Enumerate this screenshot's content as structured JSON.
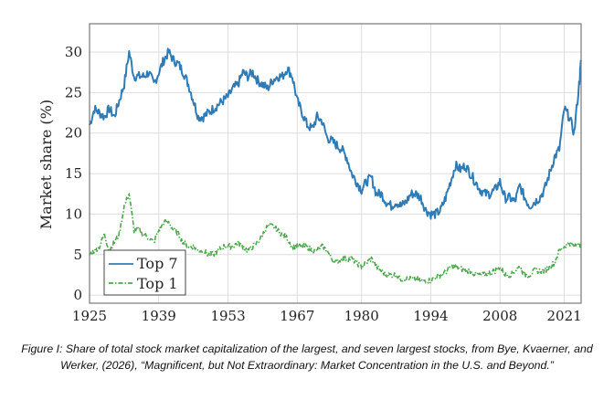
{
  "chart_data": {
    "type": "line",
    "xlabel": "",
    "ylabel": "Market share (%)",
    "xlim": [
      1925,
      2024.4
    ],
    "ylim": [
      -1,
      33.5
    ],
    "xticks": [
      1925,
      1939,
      1953,
      1967,
      1980,
      1994,
      2008,
      2021
    ],
    "yticks": [
      0,
      5,
      10,
      15,
      20,
      25,
      30
    ],
    "grid": true,
    "legend_position": "bottom-left",
    "series": [
      {
        "name": "Top 7",
        "color": "#2f7bb5",
        "style": "solid",
        "x": [
          1925,
          1926,
          1927,
          1928,
          1929,
          1930,
          1931,
          1932,
          1933,
          1934,
          1935,
          1936,
          1937,
          1938,
          1939,
          1940,
          1941,
          1942,
          1943,
          1944,
          1945,
          1946,
          1947,
          1948,
          1949,
          1950,
          1951,
          1952,
          1953,
          1954,
          1955,
          1956,
          1957,
          1958,
          1959,
          1960,
          1961,
          1962,
          1963,
          1964,
          1965,
          1966,
          1967,
          1968,
          1969,
          1970,
          1971,
          1972,
          1973,
          1974,
          1975,
          1976,
          1977,
          1978,
          1979,
          1980,
          1981,
          1982,
          1983,
          1984,
          1985,
          1986,
          1987,
          1988,
          1989,
          1990,
          1991,
          1992,
          1993,
          1994,
          1995,
          1996,
          1997,
          1998,
          1999,
          2000,
          2001,
          2002,
          2003,
          2004,
          2005,
          2006,
          2007,
          2008,
          2009,
          2010,
          2011,
          2012,
          2013,
          2014,
          2015,
          2016,
          2017,
          2018,
          2019,
          2020,
          2021,
          2022,
          2023,
          2024,
          2024.4
        ],
        "y": [
          21,
          23,
          22.5,
          22,
          23,
          22,
          24,
          26,
          30,
          27,
          27,
          27,
          27.5,
          26,
          27.5,
          29,
          30,
          29,
          28.5,
          27.5,
          26,
          24,
          22,
          22,
          22.5,
          23,
          23.5,
          24,
          24.5,
          25.5,
          26,
          27.5,
          27,
          27.5,
          26.5,
          26,
          25.5,
          26.5,
          27,
          27,
          28,
          27,
          24,
          22.5,
          21,
          20.5,
          22,
          21.5,
          19.5,
          19,
          18.5,
          18,
          17,
          15,
          14,
          13,
          14,
          14.5,
          12.5,
          12.5,
          11.5,
          11,
          11.5,
          11,
          11.5,
          12.5,
          12.5,
          12,
          10.5,
          10,
          10,
          10.5,
          12,
          14,
          16,
          15.5,
          16,
          15,
          14,
          13,
          12.5,
          12.5,
          13,
          14,
          12,
          12,
          11.5,
          13.5,
          12,
          11,
          11.5,
          12,
          13,
          15,
          17,
          18,
          23,
          22,
          20,
          26,
          29
        ]
      },
      {
        "name": "Top 1",
        "color": "#4aa84a",
        "style": "dash-dot",
        "x": [
          1925,
          1926,
          1927,
          1928,
          1929,
          1930,
          1931,
          1932,
          1933,
          1934,
          1935,
          1936,
          1937,
          1938,
          1939,
          1940,
          1941,
          1942,
          1943,
          1944,
          1945,
          1946,
          1947,
          1948,
          1949,
          1950,
          1951,
          1952,
          1953,
          1954,
          1955,
          1956,
          1957,
          1958,
          1959,
          1960,
          1961,
          1962,
          1963,
          1964,
          1965,
          1966,
          1967,
          1968,
          1969,
          1970,
          1971,
          1972,
          1973,
          1974,
          1975,
          1976,
          1977,
          1978,
          1979,
          1980,
          1981,
          1982,
          1983,
          1984,
          1985,
          1986,
          1987,
          1988,
          1989,
          1990,
          1991,
          1992,
          1993,
          1994,
          1995,
          1996,
          1997,
          1998,
          1999,
          2000,
          2001,
          2002,
          2003,
          2004,
          2005,
          2006,
          2007,
          2008,
          2009,
          2010,
          2011,
          2012,
          2013,
          2014,
          2015,
          2016,
          2017,
          2018,
          2019,
          2020,
          2021,
          2022,
          2023,
          2024,
          2024.4
        ],
        "y": [
          5,
          5.5,
          6,
          7.5,
          5.5,
          6.5,
          7.5,
          11,
          12.5,
          8,
          8,
          7.5,
          7,
          6.5,
          8,
          9,
          9,
          8,
          7.5,
          6.5,
          6,
          6,
          5.5,
          5.5,
          5,
          5,
          5.5,
          6,
          6,
          6,
          6.5,
          6,
          5.5,
          6,
          6.5,
          7.5,
          8.5,
          8.5,
          8,
          7.5,
          7,
          6,
          6,
          6,
          6,
          5.5,
          5.5,
          6,
          5.5,
          4.5,
          4,
          4.5,
          4.5,
          4.5,
          4,
          3.5,
          4,
          4.5,
          3.5,
          3,
          2.5,
          2.5,
          2.5,
          2,
          2,
          2,
          2,
          1.8,
          1.8,
          1.8,
          2.2,
          2.5,
          2.8,
          3.5,
          3.5,
          3.3,
          3,
          3,
          2.5,
          2.5,
          2.5,
          2.8,
          3,
          3.5,
          2.5,
          2.5,
          3,
          3.5,
          2.5,
          2.5,
          3,
          3,
          3,
          3.5,
          4,
          5.5,
          6,
          6.5,
          6,
          6.5,
          6
        ]
      }
    ]
  },
  "caption": "Figure I: Share of total stock market capitalization of the largest, and seven largest stocks, from Bye, Kvaerner, and Werker, (2026), “Magnificent, but Not Extraordinary: Market Concentration in the U.S. and Beyond.”"
}
